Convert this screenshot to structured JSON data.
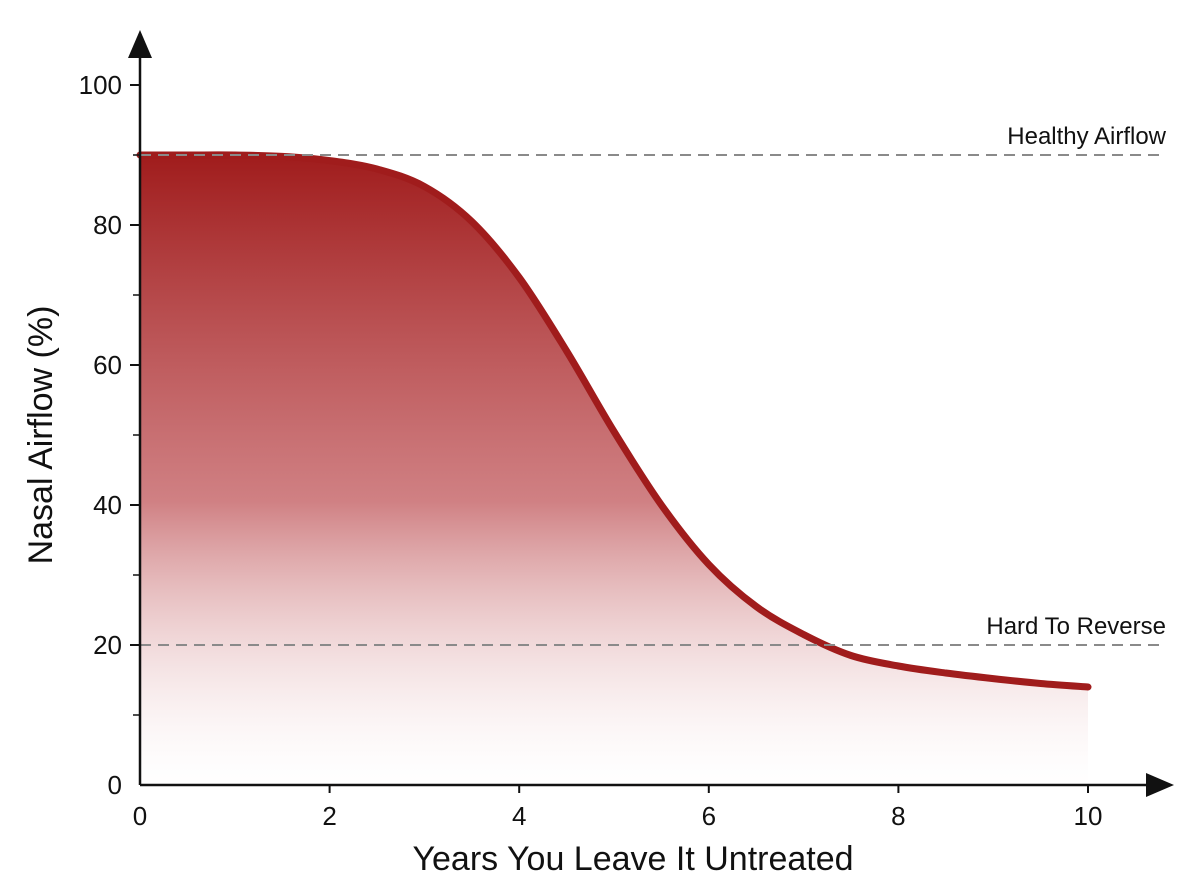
{
  "chart_data": {
    "type": "area",
    "title": "",
    "xlabel": "Years You Leave It Untreated",
    "ylabel": "Nasal Airflow (%)",
    "xlim": [
      0,
      10
    ],
    "ylim": [
      0,
      100
    ],
    "x_ticks": [
      "0",
      "2",
      "4",
      "6",
      "8",
      "10"
    ],
    "y_ticks": [
      "0",
      "20",
      "40",
      "60",
      "80",
      "100"
    ],
    "grid": false,
    "legend": "none",
    "series": [
      {
        "x": [
          0,
          0.5,
          1,
          1.5,
          2,
          2.5,
          3,
          3.5,
          4,
          4.5,
          5,
          5.5,
          6,
          6.5,
          7,
          7.5,
          8,
          8.5,
          9,
          9.5,
          10
        ],
        "y": [
          90,
          90,
          90,
          89.8,
          89.2,
          88,
          85.5,
          80.5,
          72.5,
          62,
          50.5,
          40,
          31.5,
          25.5,
          21.5,
          18.5,
          17,
          16,
          15.2,
          14.5,
          14
        ],
        "color": "#a01c1c"
      }
    ],
    "reference_lines": [
      {
        "label": "Healthy Airflow",
        "y": 90
      },
      {
        "label": "Hard To Reverse",
        "y": 20
      }
    ]
  }
}
